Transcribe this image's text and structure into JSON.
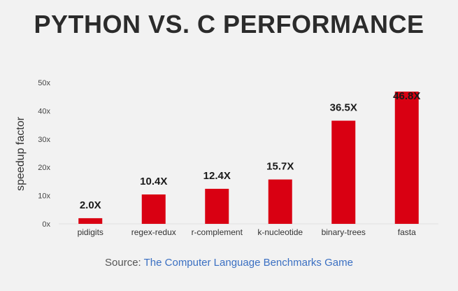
{
  "chart_data": {
    "type": "bar",
    "title": "PYTHON VS. C PERFORMANCE",
    "ylabel": "speedup factor",
    "xlabel": "",
    "categories": [
      "pidigits",
      "regex-redux",
      "r-complement",
      "k-nucleotide",
      "binary-trees",
      "fasta"
    ],
    "values": [
      2.0,
      10.4,
      12.4,
      15.7,
      36.5,
      46.8
    ],
    "data_labels": [
      "2.0X",
      "10.4X",
      "12.4X",
      "15.7X",
      "36.5X",
      "46.8X"
    ],
    "ylim": [
      0,
      50
    ],
    "y_ticks": [
      "0x",
      "10x",
      "20x",
      "30x",
      "40x",
      "50x"
    ],
    "grid": false,
    "legend": "none",
    "bar_color": "#d90012"
  },
  "source": {
    "prefix": "Source: ",
    "link_text": "The Computer Language Benchmarks Game"
  }
}
